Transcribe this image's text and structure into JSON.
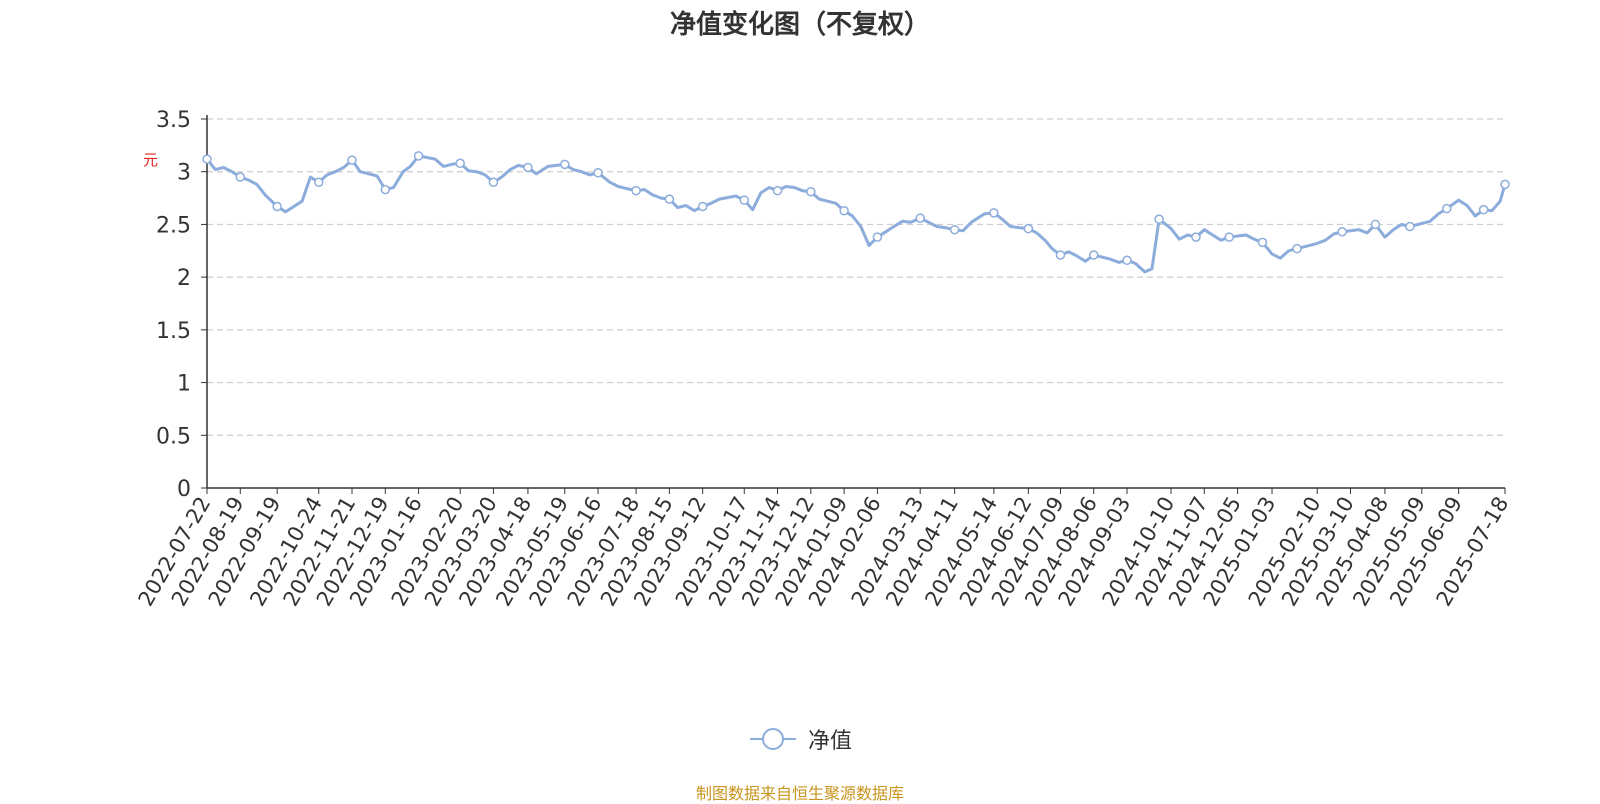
{
  "title": "净值变化图（不复权）",
  "footer": {
    "text": "制图数据来自恒生聚源数据库",
    "color": "#c9951f"
  },
  "chart_data": {
    "type": "line",
    "title": "净值变化图（不复权）",
    "ylabel": "元",
    "ylim": [
      0,
      3.5
    ],
    "yticks": [
      0,
      0.5,
      1,
      1.5,
      2,
      2.5,
      3,
      3.5
    ],
    "grid": true,
    "legend_position": "bottom",
    "x_ticks": [
      "2022-07-22",
      "2022-08-19",
      "2022-09-19",
      "2022-10-24",
      "2022-11-21",
      "2022-12-19",
      "2023-01-16",
      "2023-02-20",
      "2023-03-20",
      "2023-04-18",
      "2023-05-19",
      "2023-06-16",
      "2023-07-18",
      "2023-08-15",
      "2023-09-12",
      "2023-10-17",
      "2023-11-14",
      "2023-12-12",
      "2024-01-09",
      "2024-02-06",
      "2024-03-13",
      "2024-04-11",
      "2024-05-14",
      "2024-06-12",
      "2024-07-09",
      "2024-08-06",
      "2024-09-03",
      "2024-10-10",
      "2024-11-07",
      "2024-12-05",
      "2025-01-03",
      "2025-02-10",
      "2025-03-10",
      "2025-04-08",
      "2025-05-09",
      "2025-06-09",
      "2025-07-18"
    ],
    "series": [
      {
        "name": "净值",
        "color": "#8cacdb",
        "x": [
          "2022-07-22",
          "2022-07-29",
          "2022-08-05",
          "2022-08-12",
          "2022-08-19",
          "2022-08-26",
          "2022-09-02",
          "2022-09-09",
          "2022-09-19",
          "2022-09-26",
          "2022-10-10",
          "2022-10-17",
          "2022-10-24",
          "2022-10-31",
          "2022-11-07",
          "2022-11-14",
          "2022-11-21",
          "2022-11-28",
          "2022-12-05",
          "2022-12-12",
          "2022-12-19",
          "2022-12-26",
          "2023-01-03",
          "2023-01-09",
          "2023-01-16",
          "2023-01-30",
          "2023-02-06",
          "2023-02-13",
          "2023-02-20",
          "2023-02-27",
          "2023-03-06",
          "2023-03-13",
          "2023-03-20",
          "2023-03-27",
          "2023-04-03",
          "2023-04-10",
          "2023-04-18",
          "2023-04-25",
          "2023-05-05",
          "2023-05-12",
          "2023-05-19",
          "2023-05-26",
          "2023-06-02",
          "2023-06-09",
          "2023-06-16",
          "2023-06-26",
          "2023-07-03",
          "2023-07-10",
          "2023-07-18",
          "2023-07-25",
          "2023-08-01",
          "2023-08-08",
          "2023-08-15",
          "2023-08-22",
          "2023-08-29",
          "2023-09-05",
          "2023-09-12",
          "2023-09-19",
          "2023-09-26",
          "2023-10-10",
          "2023-10-17",
          "2023-10-24",
          "2023-10-31",
          "2023-11-07",
          "2023-11-14",
          "2023-11-21",
          "2023-11-28",
          "2023-12-05",
          "2023-12-12",
          "2023-12-19",
          "2023-12-26",
          "2024-01-02",
          "2024-01-09",
          "2024-01-16",
          "2024-01-23",
          "2024-01-30",
          "2024-02-06",
          "2024-02-20",
          "2024-02-27",
          "2024-03-05",
          "2024-03-13",
          "2024-03-20",
          "2024-03-27",
          "2024-04-03",
          "2024-04-11",
          "2024-04-18",
          "2024-04-25",
          "2024-05-06",
          "2024-05-14",
          "2024-05-21",
          "2024-05-28",
          "2024-06-04",
          "2024-06-12",
          "2024-06-19",
          "2024-06-26",
          "2024-07-02",
          "2024-07-09",
          "2024-07-16",
          "2024-07-23",
          "2024-07-30",
          "2024-08-06",
          "2024-08-13",
          "2024-08-20",
          "2024-08-27",
          "2024-09-03",
          "2024-09-10",
          "2024-09-18",
          "2024-09-24",
          "2024-09-30",
          "2024-10-10",
          "2024-10-17",
          "2024-10-24",
          "2024-10-31",
          "2024-11-07",
          "2024-11-14",
          "2024-11-21",
          "2024-11-28",
          "2024-12-05",
          "2024-12-12",
          "2024-12-19",
          "2024-12-26",
          "2025-01-03",
          "2025-01-10",
          "2025-01-17",
          "2025-01-24",
          "2025-02-10",
          "2025-02-17",
          "2025-02-24",
          "2025-03-03",
          "2025-03-10",
          "2025-03-17",
          "2025-03-24",
          "2025-03-31",
          "2025-04-08",
          "2025-04-15",
          "2025-04-22",
          "2025-04-29",
          "2025-05-09",
          "2025-05-16",
          "2025-05-23",
          "2025-05-30",
          "2025-06-09",
          "2025-06-16",
          "2025-06-23",
          "2025-06-30",
          "2025-07-07",
          "2025-07-14",
          "2025-07-18"
        ],
        "values": [
          3.12,
          3.02,
          3.04,
          3.0,
          2.95,
          2.92,
          2.88,
          2.78,
          2.67,
          2.62,
          2.72,
          2.95,
          2.9,
          2.97,
          3.0,
          3.04,
          3.11,
          3.0,
          2.98,
          2.96,
          2.83,
          2.85,
          3.0,
          3.05,
          3.15,
          3.12,
          3.05,
          3.07,
          3.08,
          3.01,
          3.0,
          2.97,
          2.9,
          2.95,
          3.02,
          3.06,
          3.04,
          2.98,
          3.05,
          3.06,
          3.07,
          3.02,
          3.0,
          2.97,
          2.99,
          2.9,
          2.86,
          2.84,
          2.82,
          2.83,
          2.78,
          2.75,
          2.74,
          2.66,
          2.68,
          2.63,
          2.67,
          2.7,
          2.74,
          2.77,
          2.73,
          2.64,
          2.8,
          2.85,
          2.82,
          2.86,
          2.85,
          2.82,
          2.81,
          2.74,
          2.72,
          2.7,
          2.63,
          2.58,
          2.48,
          2.3,
          2.38,
          2.48,
          2.53,
          2.52,
          2.56,
          2.52,
          2.48,
          2.47,
          2.45,
          2.44,
          2.52,
          2.6,
          2.61,
          2.55,
          2.48,
          2.47,
          2.46,
          2.42,
          2.35,
          2.27,
          2.21,
          2.24,
          2.2,
          2.15,
          2.21,
          2.19,
          2.17,
          2.14,
          2.16,
          2.13,
          2.05,
          2.08,
          2.55,
          2.46,
          2.36,
          2.4,
          2.38,
          2.45,
          2.4,
          2.35,
          2.38,
          2.39,
          2.4,
          2.36,
          2.33,
          2.22,
          2.18,
          2.25,
          2.27,
          2.32,
          2.35,
          2.41,
          2.43,
          2.44,
          2.45,
          2.42,
          2.5,
          2.38,
          2.45,
          2.5,
          2.48,
          2.51,
          2.53,
          2.6,
          2.65,
          2.73,
          2.68,
          2.58,
          2.64,
          2.63,
          2.72,
          2.88
        ]
      }
    ]
  }
}
